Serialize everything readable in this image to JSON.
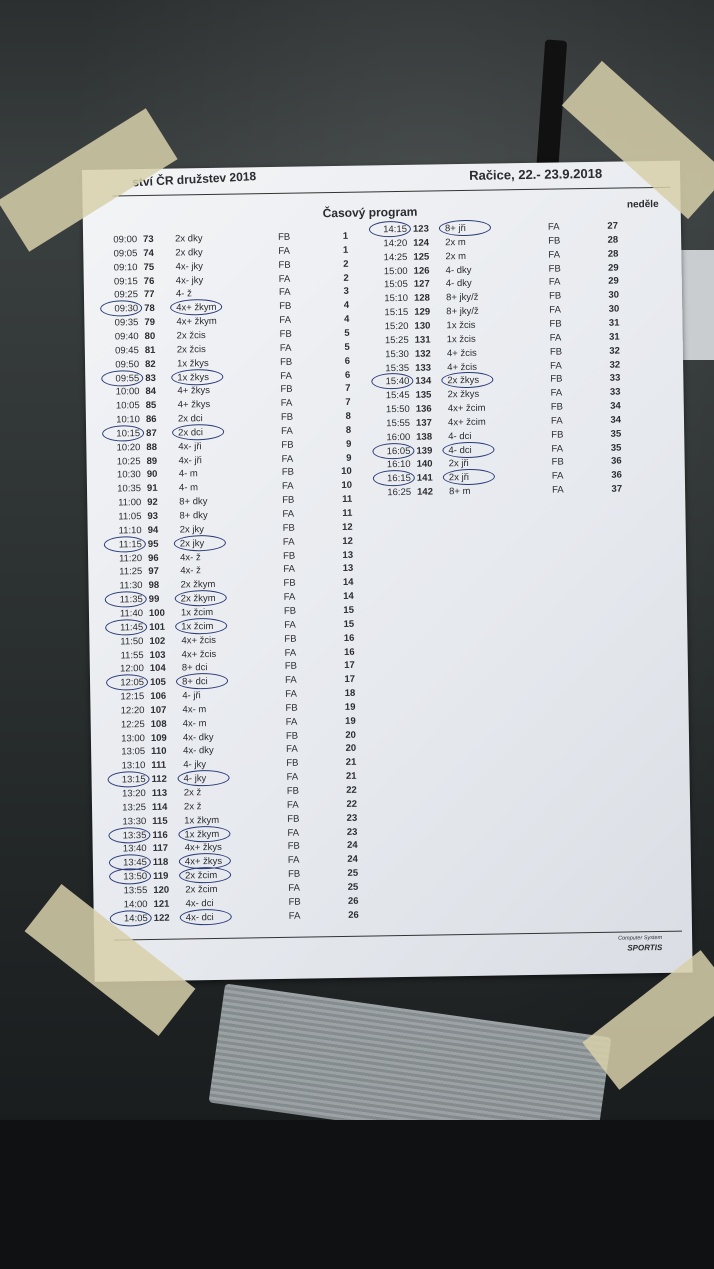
{
  "header": {
    "event": "ství ČR družstev 2018",
    "place_date": "Račice, 22.- 23.9.2018",
    "title": "Časový program",
    "day": "neděle"
  },
  "footer": {
    "line1": "Computer System",
    "line2": "SPORTIS"
  },
  "columns": [
    "time",
    "race_no",
    "event",
    "lane",
    "race"
  ],
  "left_rows": [
    [
      "09:00",
      "73",
      "2x dky",
      "FB",
      "1",
      false
    ],
    [
      "09:05",
      "74",
      "2x dky",
      "FA",
      "1",
      false
    ],
    [
      "09:10",
      "75",
      "4x- jky",
      "FB",
      "2",
      false
    ],
    [
      "09:15",
      "76",
      "4x- jky",
      "FA",
      "2",
      false
    ],
    [
      "09:25",
      "77",
      "4- ž",
      "FA",
      "3",
      false
    ],
    [
      "09:30",
      "78",
      "4x+ žkym",
      "FB",
      "4",
      true
    ],
    [
      "09:35",
      "79",
      "4x+ žkym",
      "FA",
      "4",
      false
    ],
    [
      "09:40",
      "80",
      "2x žcis",
      "FB",
      "5",
      false
    ],
    [
      "09:45",
      "81",
      "2x žcis",
      "FA",
      "5",
      false
    ],
    [
      "09:50",
      "82",
      "1x žkys",
      "FB",
      "6",
      false
    ],
    [
      "09:55",
      "83",
      "1x žkys",
      "FA",
      "6",
      true
    ],
    [
      "10:00",
      "84",
      "4+ žkys",
      "FB",
      "7",
      false
    ],
    [
      "10:05",
      "85",
      "4+ žkys",
      "FA",
      "7",
      false
    ],
    [
      "10:10",
      "86",
      "2x dci",
      "FB",
      "8",
      false
    ],
    [
      "10:15",
      "87",
      "2x dci",
      "FA",
      "8",
      true
    ],
    [
      "10:20",
      "88",
      "4x- jři",
      "FB",
      "9",
      false
    ],
    [
      "10:25",
      "89",
      "4x- jři",
      "FA",
      "9",
      false
    ],
    [
      "10:30",
      "90",
      "4- m",
      "FB",
      "10",
      false
    ],
    [
      "10:35",
      "91",
      "4- m",
      "FA",
      "10",
      false
    ],
    [
      "11:00",
      "92",
      "8+ dky",
      "FB",
      "11",
      false
    ],
    [
      "11:05",
      "93",
      "8+ dky",
      "FA",
      "11",
      false
    ],
    [
      "11:10",
      "94",
      "2x jky",
      "FB",
      "12",
      false
    ],
    [
      "11:15",
      "95",
      "2x jky",
      "FA",
      "12",
      true
    ],
    [
      "11:20",
      "96",
      "4x- ž",
      "FB",
      "13",
      false
    ],
    [
      "11:25",
      "97",
      "4x- ž",
      "FA",
      "13",
      false
    ],
    [
      "11:30",
      "98",
      "2x žkym",
      "FB",
      "14",
      false
    ],
    [
      "11:35",
      "99",
      "2x žkym",
      "FA",
      "14",
      true
    ],
    [
      "11:40",
      "100",
      "1x žcim",
      "FB",
      "15",
      false
    ],
    [
      "11:45",
      "101",
      "1x žcim",
      "FA",
      "15",
      true
    ],
    [
      "11:50",
      "102",
      "4x+ žcis",
      "FB",
      "16",
      false
    ],
    [
      "11:55",
      "103",
      "4x+ žcis",
      "FA",
      "16",
      false
    ],
    [
      "12:00",
      "104",
      "8+ dci",
      "FB",
      "17",
      false
    ],
    [
      "12:05",
      "105",
      "8+ dci",
      "FA",
      "17",
      true
    ],
    [
      "12:15",
      "106",
      "4- jři",
      "FA",
      "18",
      false
    ],
    [
      "12:20",
      "107",
      "4x- m",
      "FB",
      "19",
      false
    ],
    [
      "12:25",
      "108",
      "4x- m",
      "FA",
      "19",
      false
    ],
    [
      "13:00",
      "109",
      "4x- dky",
      "FB",
      "20",
      false
    ],
    [
      "13:05",
      "110",
      "4x- dky",
      "FA",
      "20",
      false
    ],
    [
      "13:10",
      "111",
      "4- jky",
      "FB",
      "21",
      false
    ],
    [
      "13:15",
      "112",
      "4- jky",
      "FA",
      "21",
      true
    ],
    [
      "13:20",
      "113",
      "2x ž",
      "FB",
      "22",
      false
    ],
    [
      "13:25",
      "114",
      "2x ž",
      "FA",
      "22",
      false
    ],
    [
      "13:30",
      "115",
      "1x žkym",
      "FB",
      "23",
      false
    ],
    [
      "13:35",
      "116",
      "1x žkym",
      "FA",
      "23",
      true
    ],
    [
      "13:40",
      "117",
      "4x+ žkys",
      "FB",
      "24",
      false
    ],
    [
      "13:45",
      "118",
      "4x+ žkys",
      "FA",
      "24",
      true
    ],
    [
      "13:50",
      "119",
      "2x žcim",
      "FB",
      "25",
      true
    ],
    [
      "13:55",
      "120",
      "2x žcim",
      "FA",
      "25",
      false
    ],
    [
      "14:00",
      "121",
      "4x- dci",
      "FB",
      "26",
      false
    ],
    [
      "14:05",
      "122",
      "4x- dci",
      "FA",
      "26",
      true
    ]
  ],
  "right_rows": [
    [
      "14:15",
      "123",
      "8+ jři",
      "FA",
      "27",
      true
    ],
    [
      "14:20",
      "124",
      "2x m",
      "FB",
      "28",
      false
    ],
    [
      "14:25",
      "125",
      "2x m",
      "FA",
      "28",
      false
    ],
    [
      "15:00",
      "126",
      "4- dky",
      "FB",
      "29",
      false
    ],
    [
      "15:05",
      "127",
      "4- dky",
      "FA",
      "29",
      false
    ],
    [
      "15:10",
      "128",
      "8+ jky/ž",
      "FB",
      "30",
      false
    ],
    [
      "15:15",
      "129",
      "8+ jky/ž",
      "FA",
      "30",
      false
    ],
    [
      "15:20",
      "130",
      "1x žcis",
      "FB",
      "31",
      false
    ],
    [
      "15:25",
      "131",
      "1x žcis",
      "FA",
      "31",
      false
    ],
    [
      "15:30",
      "132",
      "4+ žcis",
      "FB",
      "32",
      false
    ],
    [
      "15:35",
      "133",
      "4+ žcis",
      "FA",
      "32",
      false
    ],
    [
      "15:40",
      "134",
      "2x žkys",
      "FB",
      "33",
      true
    ],
    [
      "15:45",
      "135",
      "2x žkys",
      "FA",
      "33",
      false
    ],
    [
      "15:50",
      "136",
      "4x+ žcim",
      "FB",
      "34",
      false
    ],
    [
      "15:55",
      "137",
      "4x+ žcim",
      "FA",
      "34",
      false
    ],
    [
      "16:00",
      "138",
      "4- dci",
      "FB",
      "35",
      false
    ],
    [
      "16:05",
      "139",
      "4- dci",
      "FA",
      "35",
      true
    ],
    [
      "16:10",
      "140",
      "2x jři",
      "FB",
      "36",
      false
    ],
    [
      "16:15",
      "141",
      "2x jři",
      "FA",
      "36",
      true
    ],
    [
      "16:25",
      "142",
      "8+ m",
      "FA",
      "37",
      false
    ]
  ],
  "colors": {
    "pen": "#2a3a78",
    "paper": "#eceef2",
    "tape": "#d7d0aa"
  }
}
